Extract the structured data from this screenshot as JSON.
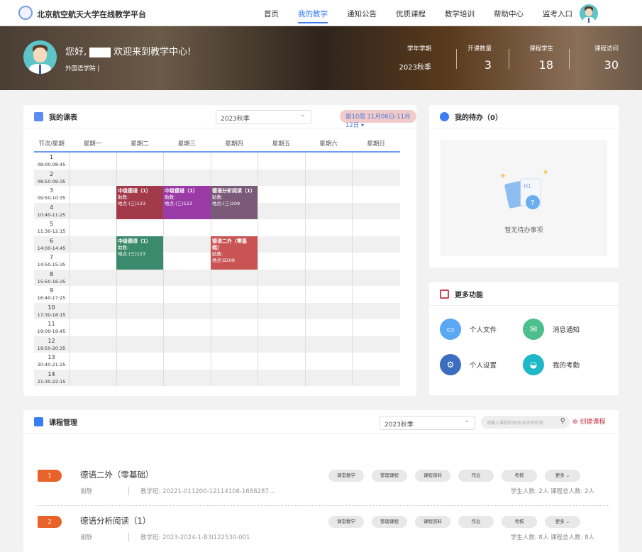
{
  "header": {
    "brand": "北京航空航天大学在线教学平台",
    "nav": [
      "首页",
      "我的教学",
      "通知公告",
      "优质课程",
      "教学培训",
      "帮助中心",
      "监考入口"
    ],
    "active": "我的教学"
  },
  "banner": {
    "greeting_prefix": "您好,",
    "greeting_suffix": "欢迎来到教学中心!",
    "dept": "外国语学院 |",
    "stats": [
      {
        "label": "学年学期",
        "value": "2023秋季"
      },
      {
        "label": "开课数量",
        "value": "3"
      },
      {
        "label": "课程学生",
        "value": "18"
      },
      {
        "label": "课程访问",
        "value": "30"
      }
    ]
  },
  "schedule": {
    "title": "我的课表",
    "semester": "2023秋季",
    "week": "第10周 11月06日-11月12日 ▾",
    "corner": "节次/星期",
    "days": [
      "星期一",
      "星期二",
      "星期三",
      "星期四",
      "星期五",
      "星期六",
      "星期日"
    ],
    "periods": [
      {
        "n": "1",
        "t": "08:00-08:45"
      },
      {
        "n": "2",
        "t": "08:50-09:35"
      },
      {
        "n": "3",
        "t": "09:50-10:35"
      },
      {
        "n": "4",
        "t": "10:40-11:25"
      },
      {
        "n": "5",
        "t": "11:30-12:15"
      },
      {
        "n": "6",
        "t": "14:00-14:45"
      },
      {
        "n": "7",
        "t": "14:50-15:35"
      },
      {
        "n": "8",
        "t": "15:50-16:35"
      },
      {
        "n": "9",
        "t": "16:40-17:25"
      },
      {
        "n": "10",
        "t": "17:30-18:15"
      },
      {
        "n": "11",
        "t": "19:00-19:45"
      },
      {
        "n": "12",
        "t": "19:50-20:35"
      },
      {
        "n": "13",
        "t": "20:40-21:25"
      },
      {
        "n": "14",
        "t": "21:30-22:15"
      }
    ],
    "classes": [
      {
        "day": 2,
        "start": 3,
        "end": 4,
        "name": "中级德语（1）",
        "assist": "助教:",
        "room": "地点:(三)123",
        "color": "#a23a4a"
      },
      {
        "day": 3,
        "start": 3,
        "end": 4,
        "name": "中级德语（1）",
        "assist": "助教:",
        "room": "地点:(三)123",
        "color": "#9a3aa6"
      },
      {
        "day": 4,
        "start": 3,
        "end": 4,
        "name": "德语分析阅读（1）",
        "assist": "助教:",
        "room": "地点:(三)209",
        "color": "#7a5a78"
      },
      {
        "day": 2,
        "start": 6,
        "end": 7,
        "name": "中级德语（1）",
        "assist": "助教:",
        "room": "地点:(三)123",
        "color": "#3a8a6e"
      },
      {
        "day": 4,
        "start": 6,
        "end": 7,
        "name": "德语二外（零基础）",
        "assist": "助教:",
        "room": "地点:B208",
        "color": "#c85454"
      }
    ]
  },
  "todo": {
    "title": "我的待办（0）",
    "empty": "暂无待办事项"
  },
  "more": {
    "title": "更多功能",
    "items": [
      {
        "label": "个人文件",
        "color": "#5aa7f5",
        "icon": "folder-icon"
      },
      {
        "label": "消息通知",
        "color": "#4dbf8f",
        "icon": "mail-icon"
      },
      {
        "label": "个人设置",
        "color": "#3d6dbf",
        "icon": "gear-icon"
      },
      {
        "label": "我的考勤",
        "color": "#1fb8c8",
        "icon": "basket-icon"
      }
    ]
  },
  "courses": {
    "title": "课程管理",
    "semester": "2023秋季",
    "search_placeholder": "请输入课程名称/别名名称检索",
    "create": "创建课程",
    "actions": [
      "课堂教学",
      "管理课程",
      "课程资料",
      "作业",
      "考核",
      "更多 ⌄"
    ],
    "items": [
      {
        "index": "1",
        "name": "德语二外（零基础）",
        "teacher": "谢静",
        "code": "教学班: 20221-011200-12114108-1688287...",
        "counts": "学生人数: 2人   课程总人数: 2人"
      },
      {
        "index": "2",
        "name": "德语分析阅读（1）",
        "teacher": "谢静",
        "code": "教学班: 2023-2024-1-B3I122530-001",
        "counts": "学生人数: 8人   课程总人数: 8人"
      }
    ]
  }
}
